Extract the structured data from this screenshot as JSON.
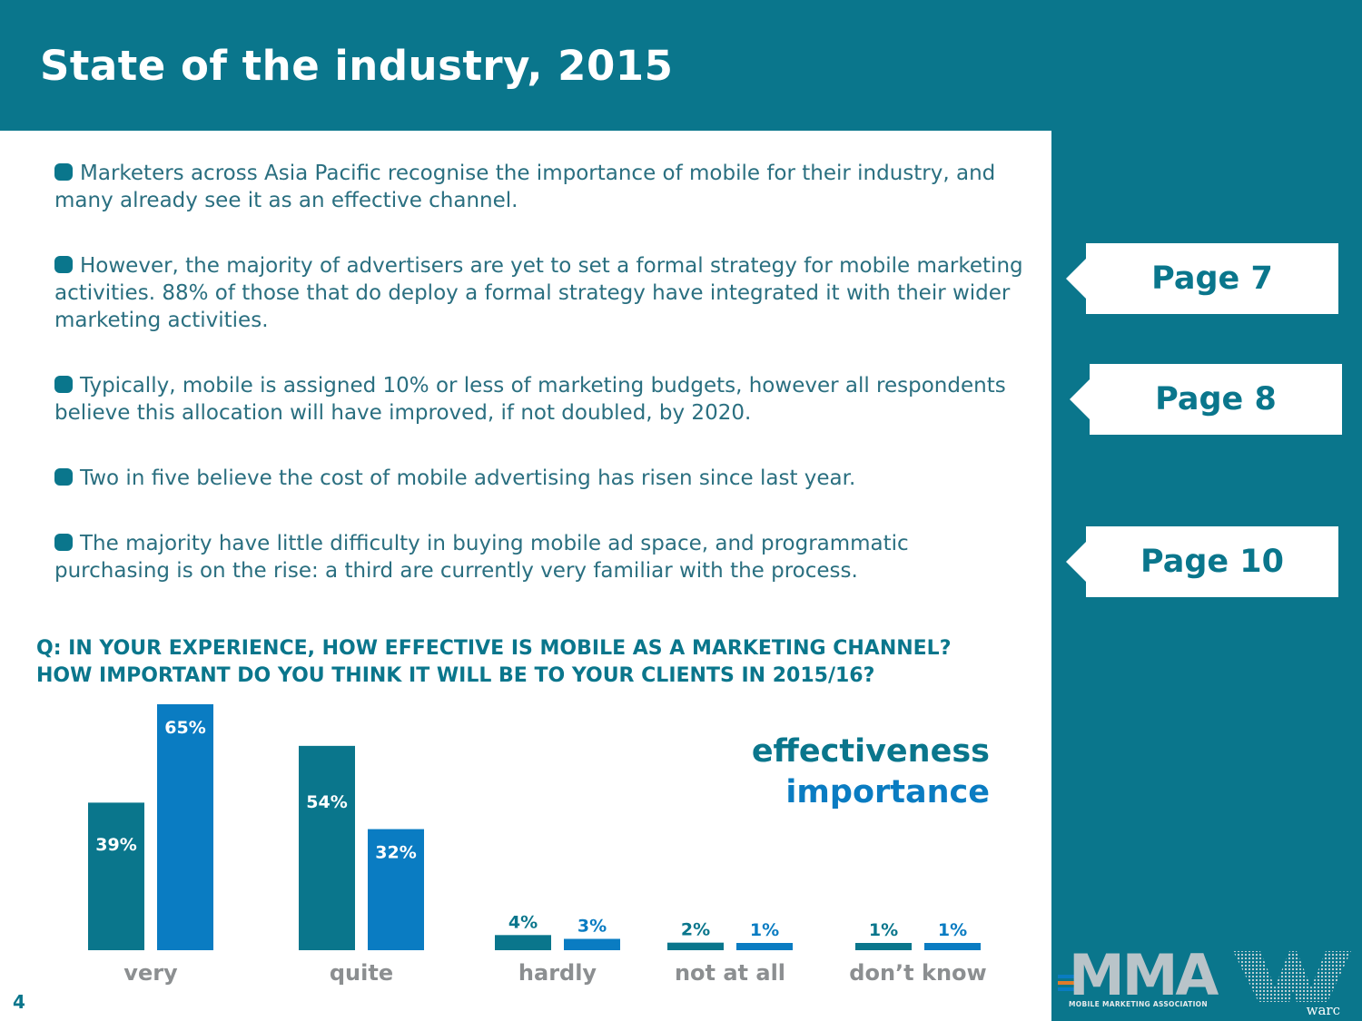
{
  "header": {
    "title": "State of the industry, 2015"
  },
  "bullets": [
    "Marketers across Asia Pacific recognise the importance of mobile for their industry, and many already see it as an effective channel.",
    "However, the majority of advertisers are yet to set a formal strategy for mobile marketing activities. 88% of those that do deploy a formal strategy have integrated it with their wider marketing activities.",
    "Typically, mobile is assigned 10% or less of marketing budgets, however all respondents believe this allocation will have improved, if not doubled, by 2020.",
    "Two in five believe the cost of mobile advertising has risen since last year.",
    "The majority have little difficulty in buying mobile ad space, and programmatic purchasing is on the rise: a third are currently very familiar with the process."
  ],
  "page_links": {
    "p7": "Page 7",
    "p8": "Page 8",
    "p10": "Page 10"
  },
  "question": {
    "line1": "Q: IN YOUR EXPERIENCE, HOW EFFECTIVE IS MOBILE AS A MARKETING CHANNEL?",
    "line2": "HOW IMPORTANT DO YOU THINK IT WILL BE TO YOUR CLIENTS IN 2015/16?"
  },
  "legend": {
    "effectiveness": "effectiveness",
    "importance": "importance"
  },
  "colors": {
    "brand": "#0A768C",
    "effectiveness": "#0A768C",
    "importance": "#0A7CC2",
    "category_label": "#8c8f91"
  },
  "chart_data": {
    "type": "bar",
    "title": "Q: IN YOUR EXPERIENCE, HOW EFFECTIVE IS MOBILE AS A MARKETING CHANNEL? HOW IMPORTANT DO YOU THINK IT WILL BE TO YOUR CLIENTS IN 2015/16?",
    "categories": [
      "very",
      "quite",
      "hardly",
      "not at all",
      "don’t know"
    ],
    "series": [
      {
        "name": "effectiveness",
        "values": [
          39,
          54,
          4,
          2,
          1
        ]
      },
      {
        "name": "importance",
        "values": [
          65,
          32,
          3,
          1,
          1
        ]
      }
    ],
    "value_suffix": "%",
    "ylim": [
      0,
      65
    ],
    "xlabel": "",
    "ylabel": "",
    "grid": false,
    "legend": "top-right"
  },
  "footer": {
    "page_number": "4",
    "logo_mma": "MMA",
    "logo_mma_sub": "MOBILE MARKETING ASSOCIATION",
    "logo_warc": "warc"
  }
}
